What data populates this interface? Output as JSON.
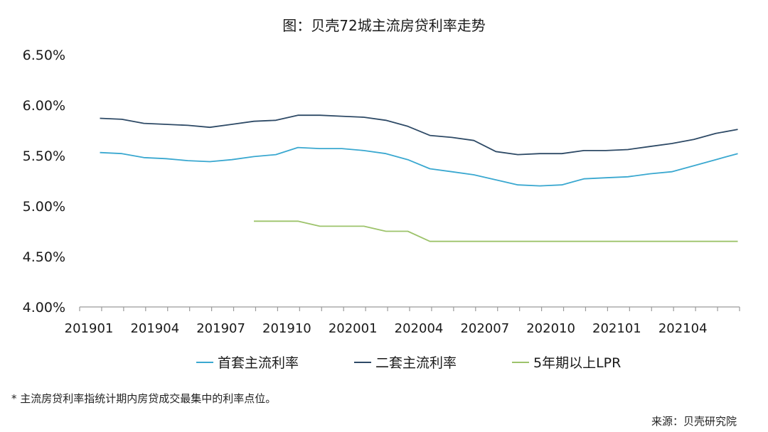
{
  "title": "图：贝壳72城主流房贷利率走势",
  "footnote": "* 主流房贷利率指统计期内房贷成交最集中的利率点位。",
  "source": "来源：贝壳研究院",
  "chart_data": {
    "type": "line",
    "ylim": [
      4.0,
      6.5
    ],
    "yticks": [
      "6.50%",
      "6.00%",
      "5.50%",
      "5.00%",
      "4.50%",
      "4.00%"
    ],
    "ytick_values": [
      6.5,
      6.0,
      5.5,
      5.0,
      4.5,
      4.0
    ],
    "x": [
      "201901",
      "201902",
      "201903",
      "201904",
      "201905",
      "201906",
      "201907",
      "201908",
      "201909",
      "201910",
      "201911",
      "201912",
      "202001",
      "202002",
      "202003",
      "202004",
      "202005",
      "202006",
      "202007",
      "202008",
      "202009",
      "202010",
      "202011",
      "202012",
      "202101",
      "202102",
      "202103",
      "202104",
      "202105",
      "202106"
    ],
    "xtick_labels": [
      "201901",
      "201904",
      "201907",
      "201910",
      "202001",
      "202004",
      "202007",
      "202010",
      "202101",
      "202104"
    ],
    "series": [
      {
        "name": "首套主流利率",
        "color": "#3aa8d0",
        "values": [
          5.53,
          5.52,
          5.48,
          5.47,
          5.45,
          5.44,
          5.46,
          5.49,
          5.51,
          5.58,
          5.57,
          5.57,
          5.55,
          5.52,
          5.46,
          5.37,
          5.34,
          5.31,
          5.26,
          5.21,
          5.2,
          5.21,
          5.27,
          5.28,
          5.29,
          5.32,
          5.34,
          5.4,
          5.46,
          5.52
        ]
      },
      {
        "name": "二套主流利率",
        "color": "#2e4a66",
        "values": [
          5.87,
          5.86,
          5.82,
          5.81,
          5.8,
          5.78,
          5.81,
          5.84,
          5.85,
          5.9,
          5.9,
          5.89,
          5.88,
          5.85,
          5.79,
          5.7,
          5.68,
          5.65,
          5.54,
          5.51,
          5.52,
          5.52,
          5.55,
          5.55,
          5.56,
          5.59,
          5.62,
          5.66,
          5.72,
          5.76
        ]
      },
      {
        "name": "5年期以上LPR",
        "color": "#9dc36b",
        "values": [
          null,
          null,
          null,
          null,
          null,
          null,
          null,
          4.85,
          4.85,
          4.85,
          4.8,
          4.8,
          4.8,
          4.75,
          4.75,
          4.65,
          4.65,
          4.65,
          4.65,
          4.65,
          4.65,
          4.65,
          4.65,
          4.65,
          4.65,
          4.65,
          4.65,
          4.65,
          4.65,
          4.65
        ]
      }
    ]
  }
}
